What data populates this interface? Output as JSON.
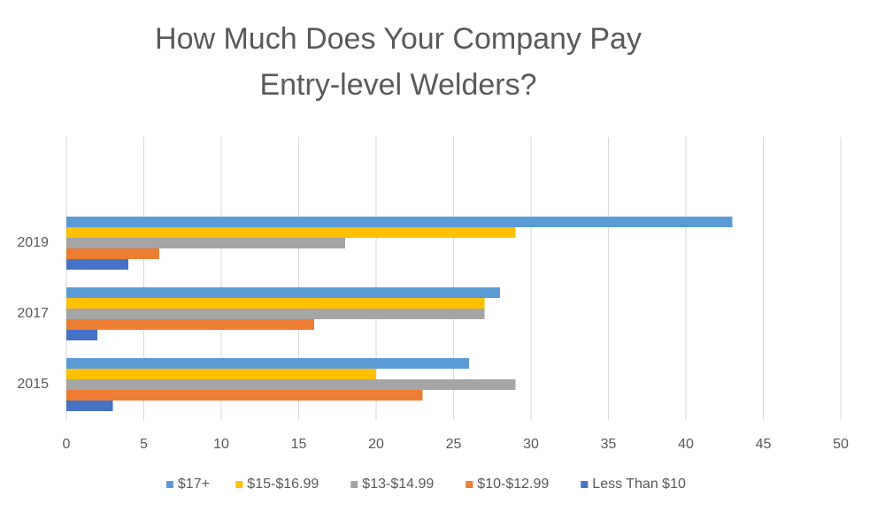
{
  "chart_data": {
    "type": "hbar",
    "title": [
      "How Much Does Your Company Pay",
      "Entry-level Welders?"
    ],
    "categories": [
      "2015",
      "2017",
      "2019",
      null
    ],
    "series": [
      {
        "name": "$17+",
        "color": "#5b9bd5",
        "values": [
          26,
          28,
          43,
          null
        ]
      },
      {
        "name": "$15-$16.99",
        "color": "#ffc000",
        "values": [
          20,
          27,
          29,
          null
        ]
      },
      {
        "name": "$13-$14.99",
        "color": "#a5a5a5",
        "values": [
          29,
          27,
          18,
          null
        ]
      },
      {
        "name": "$10-$12.99",
        "color": "#ed7d31",
        "values": [
          23,
          16,
          6,
          null
        ]
      },
      {
        "name": "Less Than $10",
        "color": "#4472c4",
        "values": [
          3,
          2,
          4,
          null
        ]
      }
    ],
    "xlim": [
      0,
      50
    ],
    "xticks": [
      0,
      5,
      10,
      15,
      20,
      25,
      30,
      35,
      40,
      45,
      50
    ],
    "grid": true,
    "legend": "bottom"
  }
}
